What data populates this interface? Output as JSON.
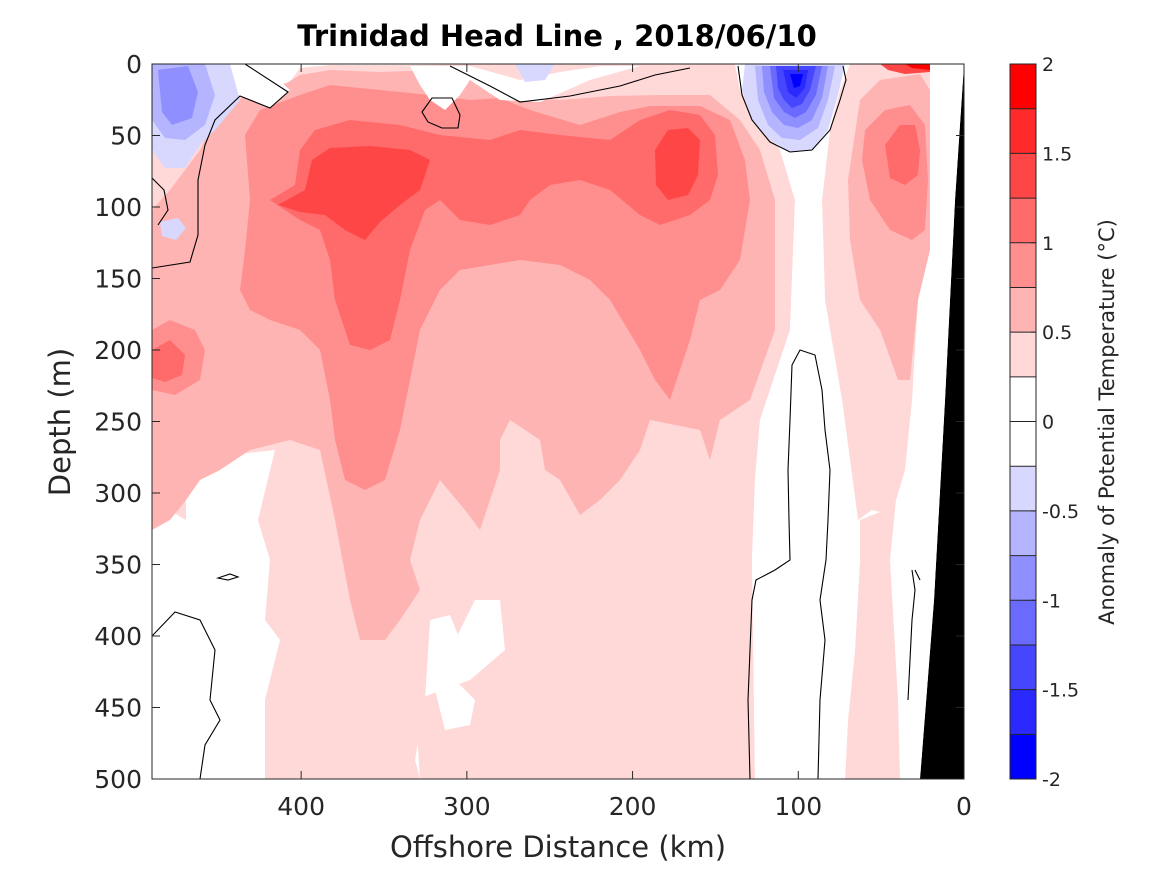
{
  "chart_data": {
    "type": "heatmap",
    "subtype": "filled-contour-section",
    "title": "Trinidad Head Line , 2018/06/10",
    "xlabel": "Offshore Distance (km)",
    "ylabel": "Depth (m)",
    "x_reversed": true,
    "y_reversed": true,
    "xlim": [
      0,
      490
    ],
    "ylim": [
      0,
      500
    ],
    "xticks": [
      400,
      300,
      200,
      100,
      0
    ],
    "xtick_labels": [
      "400",
      "300",
      "200",
      "100",
      "0"
    ],
    "yticks": [
      0,
      50,
      100,
      150,
      200,
      250,
      300,
      350,
      400,
      450,
      500
    ],
    "ytick_labels": [
      "0",
      "50",
      "100",
      "150",
      "200",
      "250",
      "300",
      "350",
      "400",
      "450",
      "500"
    ],
    "colorbar": {
      "label": "Anomaly of Potential Temperature (°C)",
      "min": -2,
      "max": 2,
      "tick_values": [
        2,
        1.5,
        1,
        0.5,
        0,
        -0.5,
        -1,
        -1.5,
        -2
      ],
      "tick_labels": [
        "2",
        "1.5",
        "1",
        "0.5",
        "0",
        "-0.5",
        "-1",
        "-1.5",
        "-2"
      ],
      "bands": [
        {
          "lo": 1.75,
          "hi": 2.0,
          "color": "#ff0000"
        },
        {
          "lo": 1.5,
          "hi": 1.75,
          "color": "#ff2a2a"
        },
        {
          "lo": 1.25,
          "hi": 1.5,
          "color": "#ff4646"
        },
        {
          "lo": 1.0,
          "hi": 1.25,
          "color": "#ff6a6a"
        },
        {
          "lo": 0.75,
          "hi": 1.0,
          "color": "#ff8f8f"
        },
        {
          "lo": 0.5,
          "hi": 0.75,
          "color": "#ffb4b4"
        },
        {
          "lo": 0.25,
          "hi": 0.5,
          "color": "#ffd8d8"
        },
        {
          "lo": 0.0,
          "hi": 0.25,
          "color": "#ffffff"
        },
        {
          "lo": -0.25,
          "hi": 0.0,
          "color": "#ffffff"
        },
        {
          "lo": -0.5,
          "hi": -0.25,
          "color": "#d8d8ff"
        },
        {
          "lo": -0.75,
          "hi": -0.5,
          "color": "#b4b4ff"
        },
        {
          "lo": -1.0,
          "hi": -0.75,
          "color": "#8f8fff"
        },
        {
          "lo": -1.25,
          "hi": -1.0,
          "color": "#6a6aff"
        },
        {
          "lo": -1.5,
          "hi": -1.25,
          "color": "#4646ff"
        },
        {
          "lo": -1.75,
          "hi": -1.5,
          "color": "#2a2aff"
        },
        {
          "lo": -2.0,
          "hi": -1.75,
          "color": "#0000ff"
        }
      ]
    },
    "zero_contour_color": "#000000",
    "seafloor_color": "#000000",
    "features": [
      {
        "kind": "warm-core",
        "center_km": 365,
        "center_depth_m": 110,
        "peak_anomaly_c": 1.4
      },
      {
        "kind": "warm-core",
        "center_km": 175,
        "center_depth_m": 80,
        "peak_anomaly_c": 1.3
      },
      {
        "kind": "warm-core",
        "center_km": 35,
        "center_depth_m": 80,
        "peak_anomaly_c": 1.1
      },
      {
        "kind": "warm-patch",
        "center_km": 25,
        "center_depth_m": 3,
        "peak_anomaly_c": 1.8
      },
      {
        "kind": "cold-core",
        "center_km": 102,
        "center_depth_m": 15,
        "peak_anomaly_c": -1.9
      },
      {
        "kind": "cold-patch",
        "center_km": 470,
        "center_depth_m": 30,
        "peak_anomaly_c": -0.9
      },
      {
        "kind": "cold-patch",
        "center_km": 240,
        "center_depth_m": 12,
        "peak_anomaly_c": -0.4
      }
    ]
  }
}
